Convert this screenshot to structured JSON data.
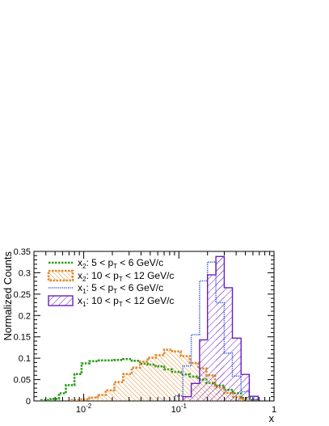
{
  "chart_data": {
    "type": "step-histogram",
    "xlabel": "x",
    "ylabel": "Normalized Counts",
    "x_scale": "log",
    "xlim": [
      0.003,
      1
    ],
    "ylim": [
      0,
      0.35
    ],
    "grid": false,
    "legend_position": "top-left",
    "x_tick_labels": [
      {
        "value": 0.01,
        "base": "10",
        "exp": "-2"
      },
      {
        "value": 0.1,
        "base": "10",
        "exp": "-1"
      },
      {
        "value": 1,
        "label": "1"
      }
    ],
    "y_ticks": [
      0,
      0.05,
      0.1,
      0.15,
      0.2,
      0.25,
      0.3,
      0.35
    ],
    "y_tick_labels": [
      "0",
      "0.05",
      "0.1",
      "0.15",
      "0.2",
      "0.25",
      "0.3",
      "0.35"
    ],
    "series": [
      {
        "name": "x2: 5 < pT < 6 GeV/c",
        "legend": {
          "var": "x",
          "var_sub": "2",
          "pre": ": 5 < p",
          "sub": "T",
          "post": " < 6 GeV/c"
        },
        "color": "#2a9a1a",
        "style": "dashed",
        "bins": [
          [
            0.0036,
            0.0045,
            0.002
          ],
          [
            0.0045,
            0.0055,
            0.005
          ],
          [
            0.0055,
            0.0065,
            0.018
          ],
          [
            0.0065,
            0.008,
            0.037
          ],
          [
            0.008,
            0.0095,
            0.063
          ],
          [
            0.0095,
            0.0115,
            0.088
          ],
          [
            0.0115,
            0.014,
            0.093
          ],
          [
            0.014,
            0.017,
            0.095
          ],
          [
            0.017,
            0.021,
            0.095
          ],
          [
            0.021,
            0.026,
            0.096
          ],
          [
            0.026,
            0.032,
            0.098
          ],
          [
            0.032,
            0.039,
            0.094
          ],
          [
            0.039,
            0.047,
            0.087
          ],
          [
            0.047,
            0.057,
            0.085
          ],
          [
            0.057,
            0.07,
            0.081
          ],
          [
            0.07,
            0.085,
            0.074
          ],
          [
            0.085,
            0.105,
            0.068
          ],
          [
            0.105,
            0.13,
            0.062
          ],
          [
            0.13,
            0.16,
            0.057
          ],
          [
            0.16,
            0.195,
            0.05
          ],
          [
            0.195,
            0.24,
            0.042
          ],
          [
            0.24,
            0.3,
            0.036
          ],
          [
            0.3,
            0.37,
            0.026
          ],
          [
            0.37,
            0.45,
            0.018
          ],
          [
            0.45,
            0.56,
            0.007
          ],
          [
            0.56,
            0.7,
            0.002
          ]
        ]
      },
      {
        "name": "x2: 10 < pT < 12 GeV/c",
        "legend": {
          "var": "x",
          "var_sub": "2",
          "pre": ": 10 < p",
          "sub": "T",
          "post": " < 12 GeV/c"
        },
        "color": "#e08a2c",
        "style": "dashed-hatch",
        "bins": [
          [
            0.0075,
            0.0095,
            0.002
          ],
          [
            0.0095,
            0.0115,
            0.004
          ],
          [
            0.0115,
            0.014,
            0.008
          ],
          [
            0.014,
            0.017,
            0.014
          ],
          [
            0.017,
            0.021,
            0.025
          ],
          [
            0.021,
            0.026,
            0.044
          ],
          [
            0.026,
            0.032,
            0.063
          ],
          [
            0.032,
            0.039,
            0.078
          ],
          [
            0.039,
            0.047,
            0.092
          ],
          [
            0.047,
            0.057,
            0.101
          ],
          [
            0.057,
            0.07,
            0.107
          ],
          [
            0.07,
            0.085,
            0.12
          ],
          [
            0.085,
            0.105,
            0.116
          ],
          [
            0.105,
            0.13,
            0.105
          ],
          [
            0.13,
            0.16,
            0.089
          ],
          [
            0.16,
            0.195,
            0.076
          ],
          [
            0.195,
            0.24,
            0.06
          ],
          [
            0.24,
            0.3,
            0.032
          ],
          [
            0.3,
            0.37,
            0.019
          ],
          [
            0.37,
            0.45,
            0.01
          ],
          [
            0.45,
            0.56,
            0.003
          ]
        ]
      },
      {
        "name": "x1: 5 < pT < 6 GeV/c",
        "legend": {
          "var": "x",
          "var_sub": "1",
          "pre": ": 5 < p",
          "sub": "T",
          "post": " < 6 GeV/c"
        },
        "color": "#3b5cdb",
        "style": "dotted",
        "bins": [
          [
            0.09,
            0.11,
            0.012
          ],
          [
            0.11,
            0.135,
            0.082
          ],
          [
            0.135,
            0.165,
            0.155
          ],
          [
            0.165,
            0.2,
            0.281
          ],
          [
            0.2,
            0.245,
            0.325
          ],
          [
            0.245,
            0.3,
            0.23
          ],
          [
            0.3,
            0.365,
            0.112
          ],
          [
            0.365,
            0.45,
            0.058
          ],
          [
            0.45,
            0.55,
            0.022
          ],
          [
            0.55,
            0.68,
            0.003
          ]
        ]
      },
      {
        "name": "x1: 10 < pT < 12 GeV/c",
        "legend": {
          "var": "x",
          "var_sub": "1",
          "pre": ": 10 < p",
          "sub": "T",
          "post": " < 12 GeV/c"
        },
        "color": "#6a1fc2",
        "style": "solid-hatch",
        "bins": [
          [
            0.11,
            0.135,
            0.01
          ],
          [
            0.135,
            0.165,
            0.041
          ],
          [
            0.165,
            0.2,
            0.143
          ],
          [
            0.2,
            0.245,
            0.295
          ],
          [
            0.245,
            0.3,
            0.338
          ],
          [
            0.245,
            0.3,
            0.338
          ],
          [
            0.3,
            0.365,
            0.265
          ],
          [
            0.365,
            0.45,
            0.147
          ],
          [
            0.45,
            0.55,
            0.062
          ],
          [
            0.55,
            0.68,
            0.011
          ]
        ]
      }
    ]
  }
}
